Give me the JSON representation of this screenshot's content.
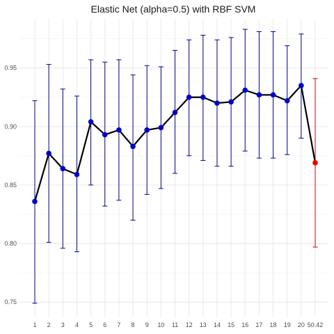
{
  "chart_data": {
    "type": "line",
    "title": "Elastic Net (alpha=0.5) with RBF SVM",
    "xlabel": "",
    "ylabel": "",
    "categories": [
      "1",
      "2",
      "3",
      "4",
      "5",
      "6",
      "7",
      "8",
      "9",
      "10",
      "11",
      "12",
      "13",
      "14",
      "15",
      "16",
      "17",
      "18",
      "19",
      "20",
      "50.42"
    ],
    "y_ticks": [
      0.75,
      0.8,
      0.85,
      0.9,
      0.95
    ],
    "y_tick_labels": [
      "0.75",
      "0.80",
      "0.85",
      "0.90",
      "0.95"
    ],
    "ylim": [
      0.737,
      0.992
    ],
    "grid": true,
    "series": [
      {
        "color": "#0000cc",
        "error_color": "#00008b",
        "line_color": "#000000",
        "x": [
          "1",
          "2",
          "3",
          "4",
          "5",
          "6",
          "7",
          "8",
          "9",
          "10",
          "11",
          "12",
          "13",
          "14",
          "15",
          "16",
          "17",
          "18",
          "19",
          "20"
        ],
        "values": [
          0.836,
          0.877,
          0.864,
          0.859,
          0.904,
          0.893,
          0.897,
          0.883,
          0.897,
          0.899,
          0.912,
          0.925,
          0.925,
          0.92,
          0.921,
          0.931,
          0.927,
          0.927,
          0.922,
          0.935
        ],
        "lower": [
          0.749,
          0.801,
          0.796,
          0.793,
          0.85,
          0.832,
          0.837,
          0.82,
          0.842,
          0.847,
          0.86,
          0.875,
          0.871,
          0.866,
          0.866,
          0.879,
          0.873,
          0.873,
          0.876,
          0.89
        ],
        "upper": [
          0.922,
          0.953,
          0.932,
          0.926,
          0.957,
          0.955,
          0.957,
          0.944,
          0.952,
          0.951,
          0.965,
          0.974,
          0.978,
          0.974,
          0.976,
          0.983,
          0.981,
          0.981,
          0.969,
          0.979
        ]
      },
      {
        "color": "#ee0000",
        "error_color": "#cc0000",
        "x": [
          "50.42"
        ],
        "values": [
          0.869
        ],
        "lower": [
          0.797
        ],
        "upper": [
          0.941
        ]
      }
    ]
  }
}
